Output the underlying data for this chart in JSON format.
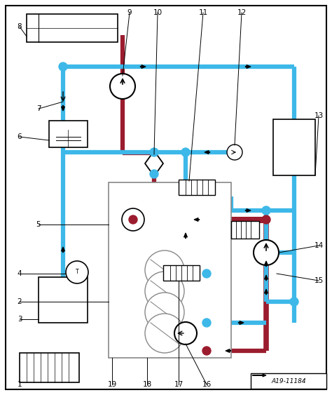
{
  "ref": "A19-11184",
  "bg_color": "#ffffff",
  "blue": "#3db8e8",
  "red": "#9b1c2e",
  "lw_pipe": 4.5,
  "lw_pipe_sm": 3.0
}
